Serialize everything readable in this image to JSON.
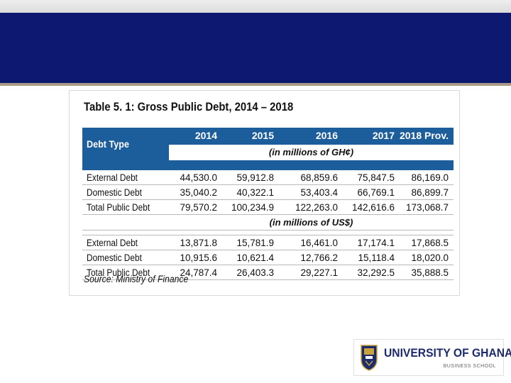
{
  "table": {
    "title": "Table 5. 1: Gross Public Debt, 2014 – 2018",
    "debt_type_label": "Debt Type",
    "years": [
      "2014",
      "2015",
      "2016",
      "2017",
      "2018 Prov."
    ],
    "unit_ghc": "(in millions of GH¢)",
    "unit_usd": "(in millions of US$)",
    "ghc_rows": [
      {
        "label": "External Debt",
        "values": [
          "44,530.0",
          "59,912.8",
          "68,859.6",
          "75,847.5",
          "86,169.0"
        ]
      },
      {
        "label": "Domestic Debt",
        "values": [
          "35,040.2",
          "40,322.1",
          "53,403.4",
          "66,769.1",
          "86,899.7"
        ]
      },
      {
        "label": "Total Public Debt",
        "values": [
          "79,570.2",
          "100,234.9",
          "122,263.0",
          "142,616.6",
          "173,068.7"
        ]
      }
    ],
    "usd_rows": [
      {
        "label": "External Debt",
        "values": [
          "13,871.8",
          "15,781.9",
          "16,461.0",
          "17,174.1",
          "17,868.5"
        ]
      },
      {
        "label": "Domestic Debt",
        "values": [
          "10,915.6",
          "10,621.4",
          "12,766.2",
          "15,118.4",
          "18,020.0"
        ]
      },
      {
        "label": "Total Public Debt",
        "values": [
          "24,787.4",
          "26,403.3",
          "29,227.1",
          "32,292.5",
          "35,888.5"
        ]
      }
    ],
    "source": "Source: Ministry of Finance"
  },
  "logo": {
    "name": "UNIVERSITY OF GHANA",
    "subtitle": "BUSINESS SCHOOL"
  },
  "colors": {
    "header_band": "#0d1870",
    "table_header": "#1c5d9c",
    "logo_text": "#1c2a6e"
  }
}
